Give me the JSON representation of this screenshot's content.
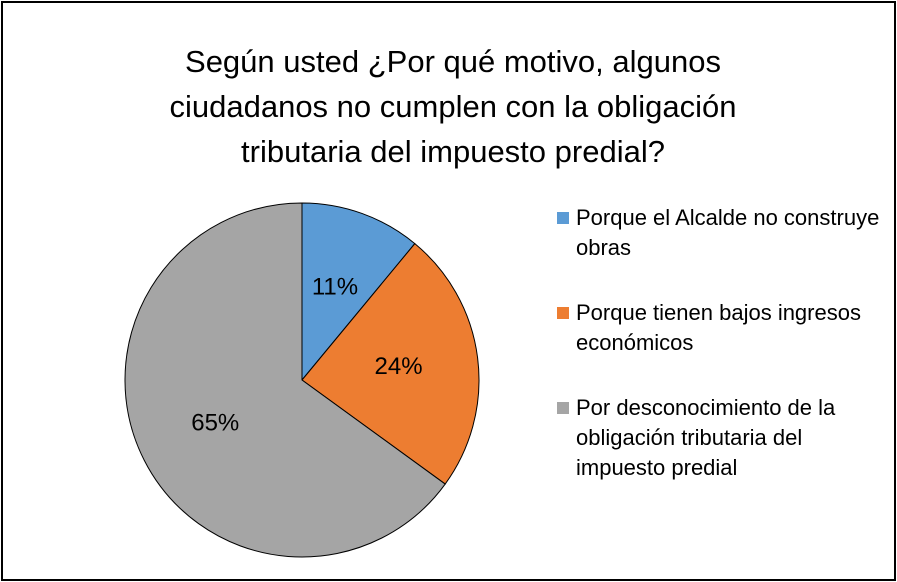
{
  "chart_data": {
    "type": "pie",
    "title": "Según usted ¿Por qué motivo, algunos ciudadanos no cumplen con la obligación tributaria del impuesto predial?",
    "categories": [
      "Porque el Alcalde no construye obras",
      "Porque tienen bajos ingresos económicos",
      "Por desconocimiento de la obligación tributaria del impuesto predial"
    ],
    "values": [
      11,
      24,
      65
    ],
    "value_labels": [
      "11%",
      "24%",
      "65%"
    ],
    "colors": [
      "#5b9bd5",
      "#ed7d31",
      "#a5a5a5"
    ],
    "legend": "right"
  }
}
